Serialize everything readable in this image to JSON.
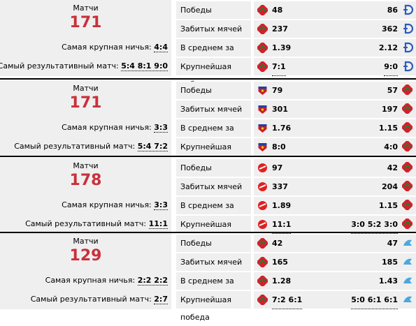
{
  "blocks": [
    {
      "matches_label": "Матчи",
      "matches_count": "171",
      "draw_label": "Самая крупная ничья:",
      "draw_value": "4:4",
      "score_label": "Самый результативный матч:",
      "score_value": "5:4 8:1 9:0",
      "team_a_icon": "lokomotiv-logo",
      "team_b_icon": "dynamo-logo",
      "rows": [
        {
          "label": "Победы",
          "a": "48",
          "b": "86"
        },
        {
          "label": "Забитых мячей",
          "a": "237",
          "b": "362"
        },
        {
          "label": "В среднем за матч",
          "a": "1.39",
          "b": "2.12"
        },
        {
          "label": "Крупнейшая победа",
          "a": "7:1",
          "b": "9:0"
        }
      ]
    },
    {
      "matches_label": "Матчи",
      "matches_count": "171",
      "draw_label": "Самая крупная ничья:",
      "draw_value": "3:3",
      "score_label": "Самый результативный матч:",
      "score_value": "5:4 7:2",
      "team_a_icon": "cska-logo",
      "team_b_icon": "lokomotiv-logo",
      "rows": [
        {
          "label": "Победы",
          "a": "79",
          "b": "57"
        },
        {
          "label": "Забитых мячей",
          "a": "301",
          "b": "197"
        },
        {
          "label": "В среднем за матч",
          "a": "1.76",
          "b": "1.15"
        },
        {
          "label": "Крупнейшая победа",
          "a": "8:0",
          "b": "4:0"
        }
      ]
    },
    {
      "matches_label": "Матчи",
      "matches_count": "178",
      "draw_label": "Самая крупная ничья:",
      "draw_value": "3:3",
      "score_label": "Самый результативный матч:",
      "score_value": "11:1",
      "team_a_icon": "spartak-logo",
      "team_b_icon": "lokomotiv-logo",
      "rows": [
        {
          "label": "Победы",
          "a": "97",
          "b": "42"
        },
        {
          "label": "Забитых мячей",
          "a": "337",
          "b": "204"
        },
        {
          "label": "В среднем за матч",
          "a": "1.89",
          "b": "1.15"
        },
        {
          "label": "Крупнейшая победа",
          "a": "11:1",
          "b": "3:0 5:2 3:0"
        }
      ]
    },
    {
      "matches_label": "Матчи",
      "matches_count": "129",
      "draw_label": "Самая крупная ничья:",
      "draw_value": "2:2 2:2",
      "score_label": "Самый результативный матч:",
      "score_value": "2:7",
      "team_a_icon": "lokomotiv-logo",
      "team_b_icon": "zenit-logo",
      "rows": [
        {
          "label": "Победы",
          "a": "42",
          "b": "47"
        },
        {
          "label": "Забитых мячей",
          "a": "165",
          "b": "185"
        },
        {
          "label": "В среднем за матч",
          "a": "1.28",
          "b": "1.43"
        },
        {
          "label": "Крупнейшая победа",
          "a": "7:2 6:1",
          "b": "5:0 6:1 6:1"
        }
      ]
    }
  ],
  "colors": {
    "count_red": "#c8313b",
    "panel_bg": "#efefef",
    "lokomotiv_red": "#d4202a",
    "lokomotiv_green": "#1b7f3a",
    "dynamo_blue": "#2a5cb8",
    "cska_red": "#c4202a",
    "spartak_red": "#e02020",
    "zenit_blue": "#4aa8e0"
  }
}
